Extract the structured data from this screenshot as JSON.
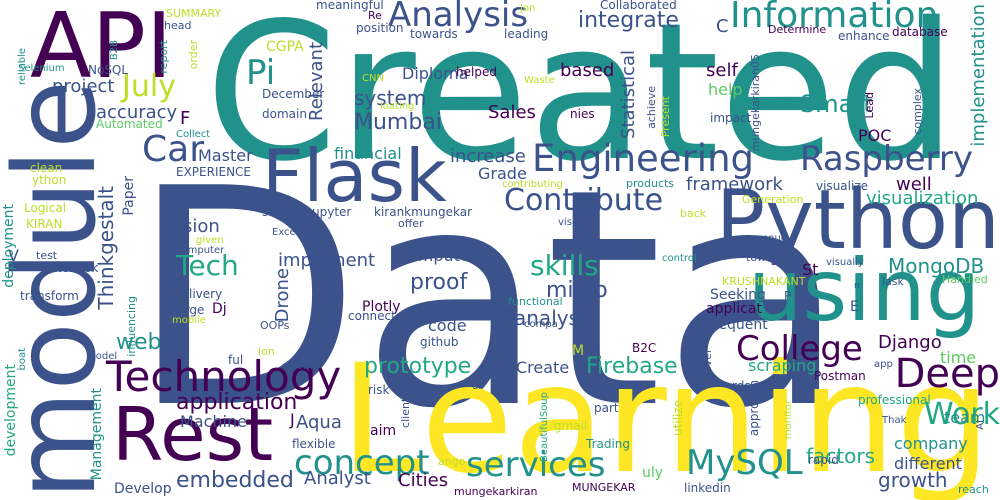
{
  "palette": [
    "#440154",
    "#3b528b",
    "#21918c",
    "#22a884",
    "#5ec962",
    "#bddf26",
    "#fde725"
  ],
  "words": [
    {
      "text": "Data",
      "color": "#3b528b"
    },
    {
      "text": "Created",
      "color": "#21918c"
    },
    {
      "text": "Learning",
      "color": "#fde725"
    },
    {
      "text": "module",
      "color": "#3b528b"
    },
    {
      "text": "Python",
      "color": "#3b528b"
    },
    {
      "text": "using",
      "color": "#21918c"
    },
    {
      "text": "API",
      "color": "#440154"
    },
    {
      "text": "Flask",
      "color": "#3b528b"
    },
    {
      "text": "Rest",
      "color": "#440154"
    },
    {
      "text": "Technology",
      "color": "#440154"
    },
    {
      "text": "Engineering",
      "color": "#3b528b"
    },
    {
      "text": "Raspberry",
      "color": "#3b528b"
    },
    {
      "text": "Information",
      "color": "#21918c"
    },
    {
      "text": "Analysis",
      "color": "#3b528b"
    },
    {
      "text": "Pi",
      "color": "#21918c"
    },
    {
      "text": "Car",
      "color": "#3b528b"
    },
    {
      "text": "July",
      "color": "#bddf26"
    },
    {
      "text": "Deep",
      "color": "#440154"
    },
    {
      "text": "College",
      "color": "#440154"
    },
    {
      "text": "Work",
      "color": "#22a884"
    },
    {
      "text": "services",
      "color": "#21918c"
    },
    {
      "text": "concept",
      "color": "#21918c"
    },
    {
      "text": "MySQL",
      "color": "#21918c"
    },
    {
      "text": "Tech",
      "color": "#22a884"
    },
    {
      "text": "Contribute",
      "color": "#3b528b"
    },
    {
      "text": "Thinkgestalt",
      "color": "#3b528b"
    },
    {
      "text": "skills",
      "color": "#22a884"
    },
    {
      "text": "prototype",
      "color": "#22a884"
    },
    {
      "text": "Smart",
      "color": "#21918c"
    },
    {
      "text": "integrate",
      "color": "#3b528b"
    },
    {
      "text": "Mumbai",
      "color": "#3b528b"
    },
    {
      "text": "system",
      "color": "#3b528b"
    },
    {
      "text": "framework",
      "color": "#3b528b"
    },
    {
      "text": "visualization",
      "color": "#22a884"
    },
    {
      "text": "MongoDB",
      "color": "#21918c"
    },
    {
      "text": "implementation",
      "color": "#21918c"
    },
    {
      "text": "application",
      "color": "#440154"
    },
    {
      "text": "embedded",
      "color": "#3b528b"
    },
    {
      "text": "Firebase",
      "color": "#22a884"
    },
    {
      "text": "Statistical",
      "color": "#3b528b"
    },
    {
      "text": "Relevant",
      "color": "#3b528b"
    },
    {
      "text": "project",
      "color": "#3b528b"
    },
    {
      "text": "accuracy",
      "color": "#3b528b"
    },
    {
      "text": "financial",
      "color": "#21918c"
    },
    {
      "text": "increase",
      "color": "#3b528b"
    },
    {
      "text": "Grade",
      "color": "#3b528b"
    },
    {
      "text": "Master",
      "color": "#3b528b"
    },
    {
      "text": "web",
      "color": "#21918c"
    },
    {
      "text": "proof",
      "color": "#3b528b"
    },
    {
      "text": "micro",
      "color": "#3b528b"
    },
    {
      "text": "analyse",
      "color": "#3b528b"
    },
    {
      "text": "Machine",
      "color": "#3b528b"
    },
    {
      "text": "Aqua",
      "color": "#3b528b"
    },
    {
      "text": "Analyst",
      "color": "#3b528b"
    },
    {
      "text": "Cities",
      "color": "#440154"
    },
    {
      "text": "Create",
      "color": "#3b528b"
    },
    {
      "text": "factors",
      "color": "#22a884"
    },
    {
      "text": "growth",
      "color": "#3b528b"
    },
    {
      "text": "different",
      "color": "#3b528b"
    },
    {
      "text": "company",
      "color": "#21918c"
    },
    {
      "text": "Django",
      "color": "#440154"
    },
    {
      "text": "time",
      "color": "#5ec962"
    },
    {
      "text": "team",
      "color": "#21918c"
    },
    {
      "text": "Sales",
      "color": "#440154"
    },
    {
      "text": "based",
      "color": "#440154"
    },
    {
      "text": "self",
      "color": "#440154"
    },
    {
      "text": "help",
      "color": "#5ec962"
    },
    {
      "text": "Diploma",
      "color": "#3b528b"
    },
    {
      "text": "well",
      "color": "#440154"
    },
    {
      "text": "POC",
      "color": "#440154"
    },
    {
      "text": "implement",
      "color": "#3b528b"
    },
    {
      "text": "code",
      "color": "#3b528b"
    },
    {
      "text": "ision",
      "color": "#3b528b"
    },
    {
      "text": "omputer",
      "color": "#3b528b"
    },
    {
      "text": "Drone",
      "color": "#3b528b"
    },
    {
      "text": "Management",
      "color": "#21918c"
    },
    {
      "text": "development",
      "color": "#22a884"
    },
    {
      "text": "deployment",
      "color": "#21918c"
    },
    {
      "text": "Paper",
      "color": "#3b528b"
    },
    {
      "text": "CGPA",
      "color": "#bddf26"
    },
    {
      "text": "Develop",
      "color": "#3b528b"
    },
    {
      "text": "scraping",
      "color": "#22a884"
    },
    {
      "text": "Postman",
      "color": "#440154"
    },
    {
      "text": "EXPERIENCE",
      "color": "#3b528b"
    },
    {
      "text": "scraped",
      "color": "#3b528b"
    },
    {
      "text": "upyter",
      "color": "#3b528b"
    },
    {
      "text": "kirankmungekar",
      "color": "#3b528b"
    },
    {
      "text": "visualize",
      "color": "#3b528b"
    },
    {
      "text": "Plotly",
      "color": "#440154"
    },
    {
      "text": "Dj",
      "color": "#440154"
    },
    {
      "text": "St",
      "color": "#440154"
    },
    {
      "text": "Seeking",
      "color": "#3b528b"
    },
    {
      "text": "applicat",
      "color": "#440154"
    },
    {
      "text": "frequent",
      "color": "#3b528b"
    },
    {
      "text": "github",
      "color": "#3b528b"
    },
    {
      "text": "connect",
      "color": "#3b528b"
    },
    {
      "text": "abilities",
      "color": "#3b528b"
    },
    {
      "text": "delivery",
      "color": "#3b528b"
    },
    {
      "text": "large",
      "color": "#3b528b"
    },
    {
      "text": "notebook",
      "color": "#3b528b"
    },
    {
      "text": "transform",
      "color": "#3b528b"
    },
    {
      "text": "Logical",
      "color": "#bddf26"
    },
    {
      "text": "KIRAN",
      "color": "#bddf26"
    },
    {
      "text": "clean",
      "color": "#bddf26"
    },
    {
      "text": "ython",
      "color": "#bddf26"
    },
    {
      "text": "December",
      "color": "#3b528b"
    },
    {
      "text": "domain",
      "color": "#3b528b"
    },
    {
      "text": "towards",
      "color": "#3b528b"
    },
    {
      "text": "leading",
      "color": "#3b528b"
    },
    {
      "text": "helped",
      "color": "#440154"
    },
    {
      "text": "database",
      "color": "#440154"
    },
    {
      "text": "nies",
      "color": "#440154"
    },
    {
      "text": "impact",
      "color": "#3b528b"
    },
    {
      "text": "mungekarkiran05",
      "color": "#3b528b"
    },
    {
      "text": "Lead",
      "color": "#440154"
    },
    {
      "text": "complex",
      "color": "#3b528b"
    },
    {
      "text": "enhance",
      "color": "#3b528b"
    },
    {
      "text": "Determine",
      "color": "#440154"
    },
    {
      "text": "Collaborated",
      "color": "#3b528b"
    },
    {
      "text": "meaningful",
      "color": "#3b528b"
    },
    {
      "text": "position",
      "color": "#3b528b"
    },
    {
      "text": "SUMMARY",
      "color": "#bddf26"
    },
    {
      "text": "head",
      "color": "#3b528b"
    },
    {
      "text": "order",
      "color": "#bddf26"
    },
    {
      "text": "report",
      "color": "#21918c"
    },
    {
      "text": "B2B",
      "color": "#21918c"
    },
    {
      "text": "NoSQL",
      "color": "#3b528b"
    },
    {
      "text": "Selenium",
      "color": "#21918c"
    },
    {
      "text": "reliable",
      "color": "#21918c"
    },
    {
      "text": "Automated",
      "color": "#5ec962"
    },
    {
      "text": "Collect",
      "color": "#21918c"
    },
    {
      "text": "Present",
      "color": "#bddf26"
    },
    {
      "text": "achieve",
      "color": "#3b528b"
    },
    {
      "text": "products",
      "color": "#21918c"
    },
    {
      "text": "contributing",
      "color": "#bddf26"
    },
    {
      "text": "Generation",
      "color": "#bddf26"
    },
    {
      "text": "back",
      "color": "#bddf26"
    },
    {
      "text": "offer",
      "color": "#3b528b"
    },
    {
      "text": "vision",
      "color": "#3b528b"
    },
    {
      "text": "Excel",
      "color": "#3b528b"
    },
    {
      "text": "given",
      "color": "#bddf26"
    },
    {
      "text": "computer",
      "color": "#3b528b"
    },
    {
      "text": "test",
      "color": "#3b528b"
    },
    {
      "text": "control",
      "color": "#21918c"
    },
    {
      "text": "revenue",
      "color": "#3b528b"
    },
    {
      "text": "towa",
      "color": "#3b528b"
    },
    {
      "text": "KRUSHNAKANT",
      "color": "#bddf26"
    },
    {
      "text": "visually",
      "color": "#3b528b"
    },
    {
      "text": "lask",
      "color": "#3b528b"
    },
    {
      "text": "Handled",
      "color": "#5ec962"
    },
    {
      "text": "influencing",
      "color": "#21918c"
    },
    {
      "text": "mobile",
      "color": "#bddf26"
    },
    {
      "text": "OOPs",
      "color": "#3b528b"
    },
    {
      "text": "ion",
      "color": "#bddf26"
    },
    {
      "text": "driving",
      "color": "#3b528b"
    },
    {
      "text": "model",
      "color": "#3b528b"
    },
    {
      "text": "boat",
      "color": "#21918c"
    },
    {
      "text": "ful",
      "color": "#3b528b"
    },
    {
      "text": "risk",
      "color": "#3b528b"
    },
    {
      "text": "aim",
      "color": "#440154"
    },
    {
      "text": "clients",
      "color": "#3b528b"
    },
    {
      "text": "BeautifulSoup",
      "color": "#22a884"
    },
    {
      "text": "gmail",
      "color": "#bddf26"
    },
    {
      "text": "Trading",
      "color": "#21918c"
    },
    {
      "text": "part",
      "color": "#3b528b"
    },
    {
      "text": "utilize",
      "color": "#bddf26"
    },
    {
      "text": "approach",
      "color": "#3b528b"
    },
    {
      "text": "monitor",
      "color": "#bddf26"
    },
    {
      "text": "rapid",
      "color": "#3b528b"
    },
    {
      "text": "AI",
      "color": "#3b528b"
    },
    {
      "text": "reach",
      "color": "#21918c"
    },
    {
      "text": "Thak",
      "color": "#3b528b"
    },
    {
      "text": "professional",
      "color": "#22a884"
    },
    {
      "text": "linkedin",
      "color": "#3b528b"
    },
    {
      "text": "MUNGEKAR",
      "color": "#440154"
    },
    {
      "text": "mungekarkiran",
      "color": "#440154"
    },
    {
      "text": "ango",
      "color": "#bddf26"
    },
    {
      "text": "uly",
      "color": "#5ec962"
    },
    {
      "text": "flexible",
      "color": "#3b528b"
    },
    {
      "text": "ur",
      "color": "#3b528b"
    },
    {
      "text": "rds",
      "color": "#3b528b"
    },
    {
      "text": "level",
      "color": "#3b528b"
    },
    {
      "text": "app",
      "color": "#3b528b"
    },
    {
      "text": "compa",
      "color": "#3b528b"
    },
    {
      "text": "functional",
      "color": "#21918c"
    },
    {
      "text": "B2C",
      "color": "#440154"
    },
    {
      "text": "M",
      "color": "#bddf26"
    },
    {
      "text": "E",
      "color": "#3b528b"
    },
    {
      "text": "P",
      "color": "#3b528b"
    },
    {
      "text": "n",
      "color": "#3b528b"
    },
    {
      "text": "F",
      "color": "#440154"
    },
    {
      "text": "V",
      "color": "#3b528b"
    },
    {
      "text": "J",
      "color": "#440154"
    },
    {
      "text": "C",
      "color": "#3b528b"
    },
    {
      "text": "Re",
      "color": "#440154"
    },
    {
      "text": "Jon",
      "color": "#bddf26"
    },
    {
      "text": "Waste",
      "color": "#bddf26"
    },
    {
      "text": "CNN",
      "color": "#bddf26"
    },
    {
      "text": "loating",
      "color": "#bddf26"
    }
  ]
}
